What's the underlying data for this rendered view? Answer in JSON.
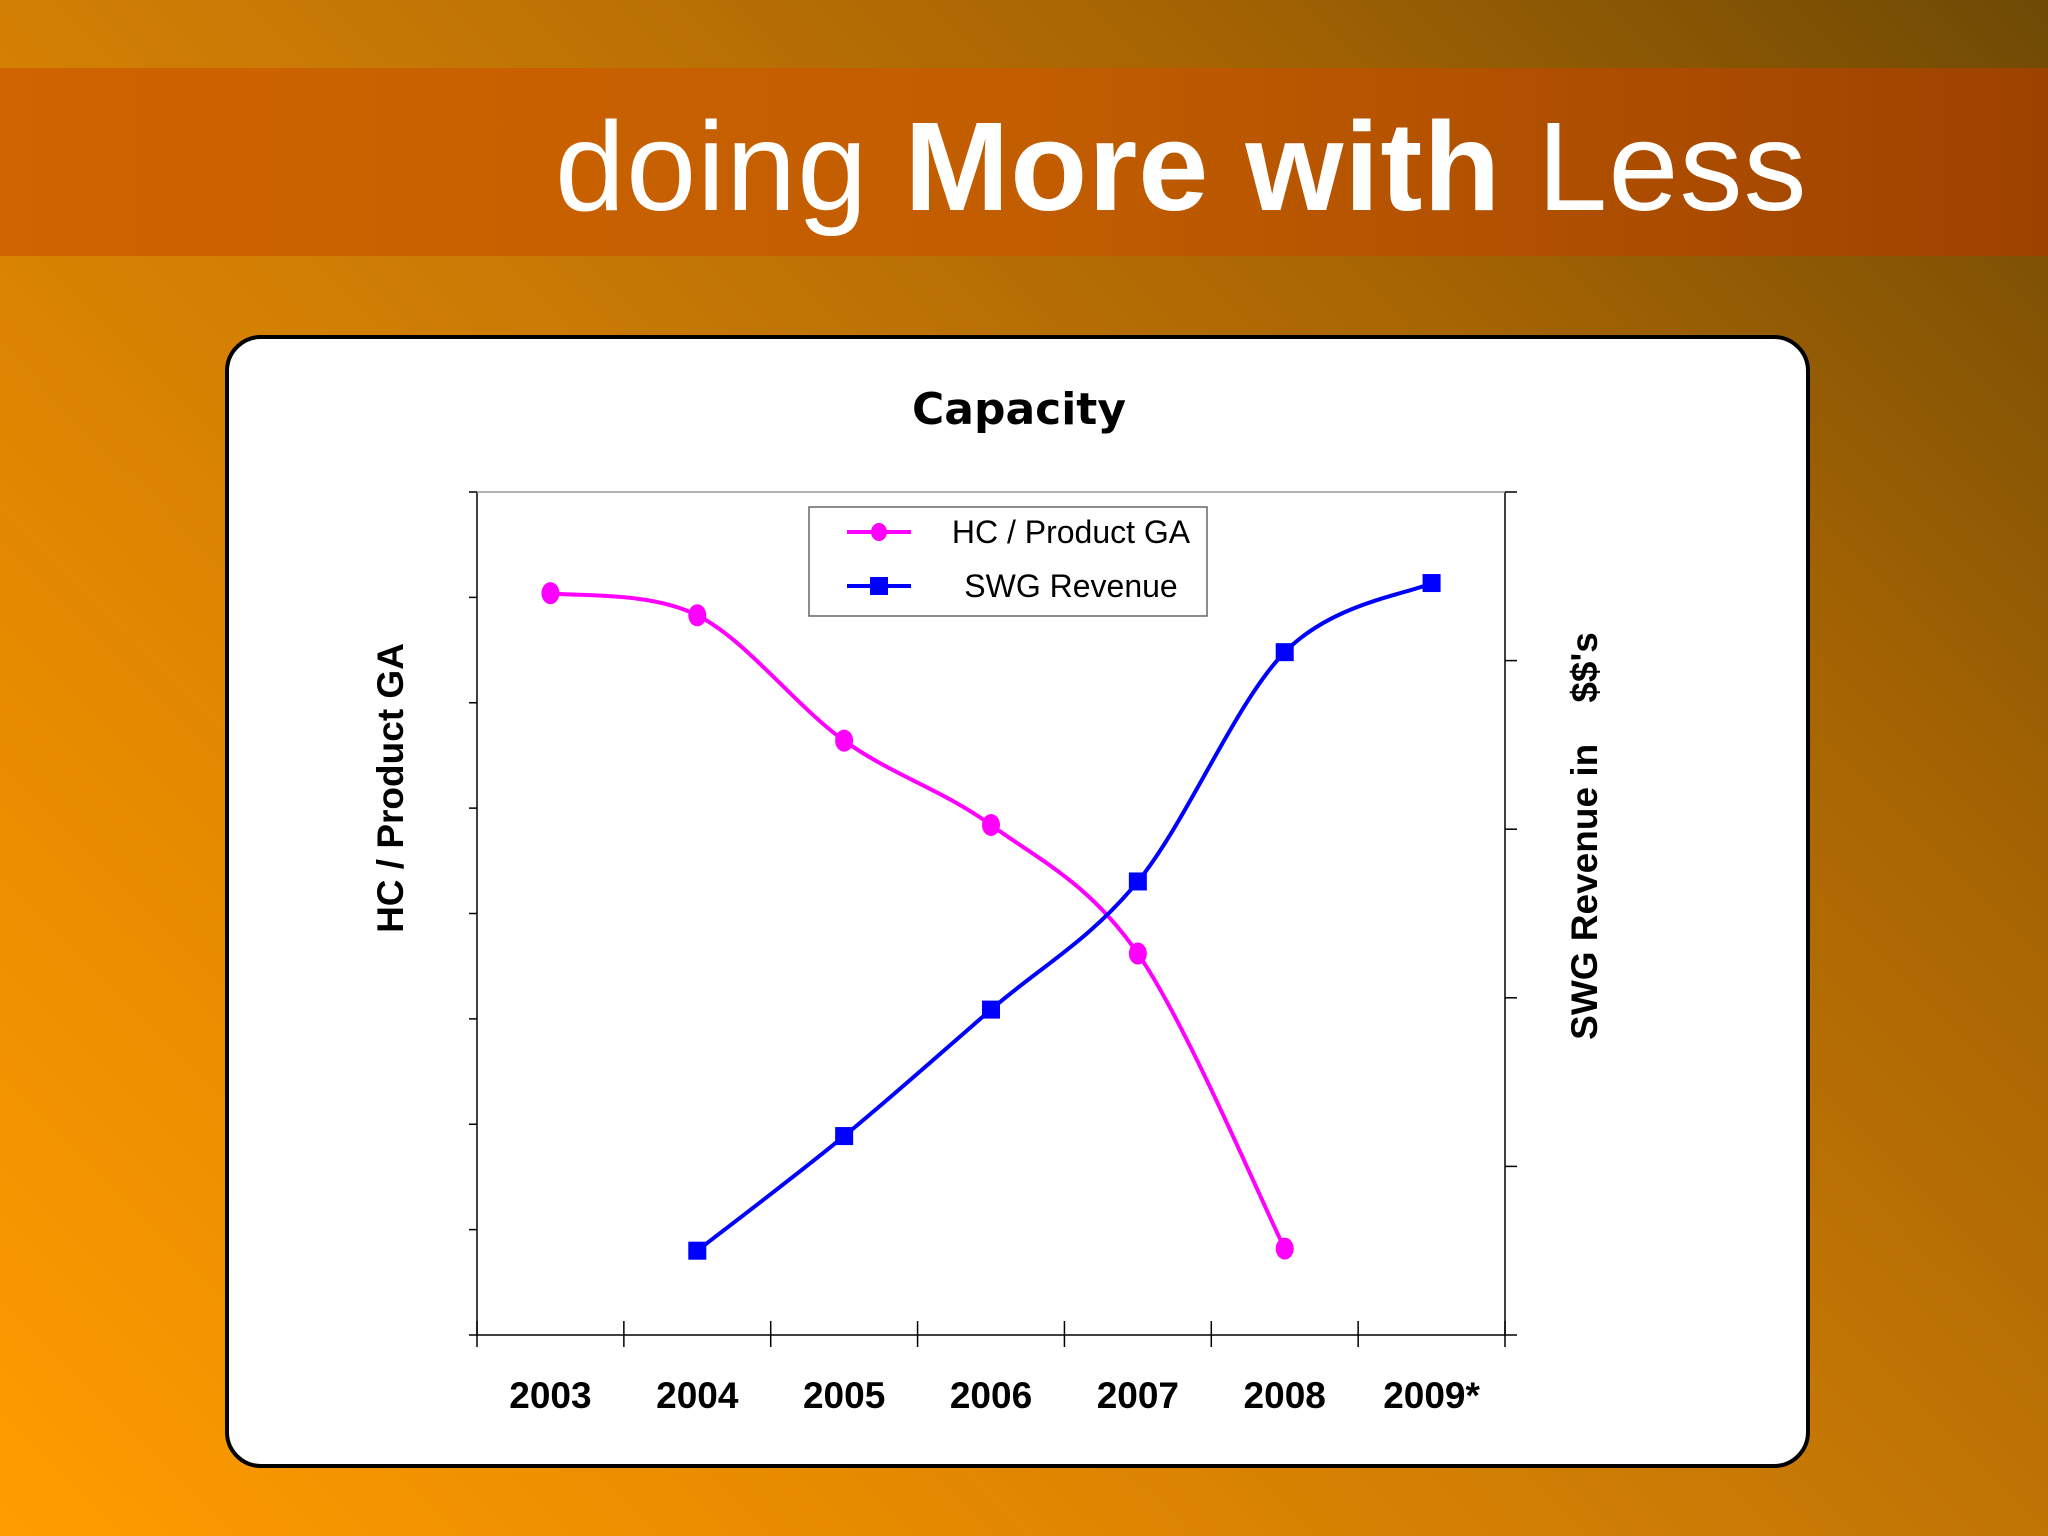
{
  "slide": {
    "title_pre": "doing ",
    "title_bold": "More with",
    "title_post": " Less"
  },
  "colors": {
    "hc_series": "#ff00ff",
    "swg_series": "#0000ff"
  },
  "chart_data": {
    "type": "line",
    "title": "Capacity",
    "categories": [
      "2003",
      "2004",
      "2005",
      "2006",
      "2007",
      "2008",
      "2009*"
    ],
    "ylabel": "HC / Product GA",
    "y2label": "SWG Revenue in    $$'s",
    "ylim": [
      0,
      8
    ],
    "y2lim": [
      0,
      5
    ],
    "legend_position": "top-center",
    "grid": false,
    "series": [
      {
        "name": "HC / Product GA",
        "axis": "left",
        "marker": "circle",
        "values": [
          7.04,
          6.83,
          5.64,
          4.84,
          3.62,
          0.82,
          null
        ]
      },
      {
        "name": "SWG Revenue",
        "axis": "right",
        "marker": "square",
        "values": [
          null,
          0.5,
          1.18,
          1.93,
          2.69,
          4.05,
          4.46
        ]
      }
    ]
  }
}
